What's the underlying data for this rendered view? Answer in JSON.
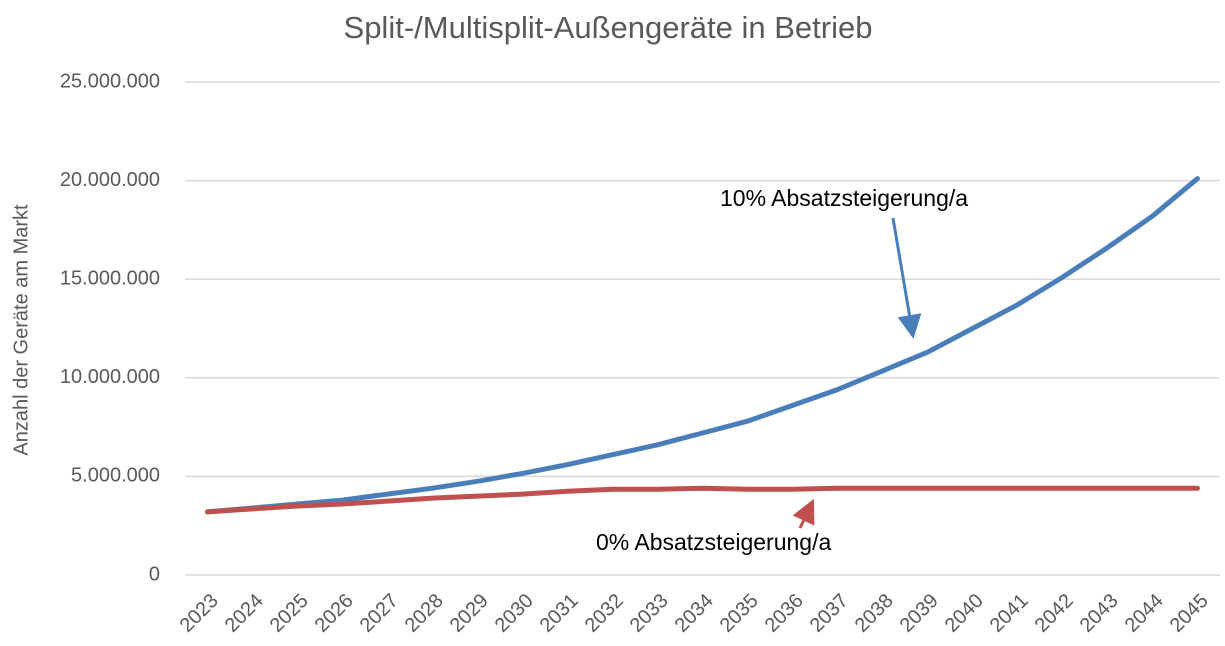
{
  "chart_data": {
    "type": "line",
    "title": "Split-/Multisplit-Außengeräte in Betrieb",
    "y_label": "Anzahl der Geräte am Markt",
    "categories": [
      "2023",
      "2024",
      "2025",
      "2026",
      "2027",
      "2028",
      "2029",
      "2030",
      "2031",
      "2032",
      "2033",
      "2034",
      "2035",
      "2036",
      "2037",
      "2038",
      "2039",
      "2040",
      "2041",
      "2042",
      "2043",
      "2044",
      "2045"
    ],
    "series": [
      {
        "name": "10% Absatzsteigerung/a",
        "color": "#4a7ebb",
        "values": [
          3200000,
          3400000,
          3600000,
          3800000,
          4100000,
          4400000,
          4750000,
          5150000,
          5600000,
          6100000,
          6600000,
          7200000,
          7800000,
          8600000,
          9400000,
          10350000,
          11300000,
          12500000,
          13700000,
          15100000,
          16600000,
          18200000,
          20100000
        ]
      },
      {
        "name": "0% Absatzsteigerung/a",
        "color": "#c0504d",
        "values": [
          3200000,
          3350000,
          3500000,
          3600000,
          3750000,
          3900000,
          4000000,
          4100000,
          4250000,
          4350000,
          4350000,
          4400000,
          4350000,
          4350000,
          4400000,
          4400000,
          4400000,
          4400000,
          4400000,
          4400000,
          4400000,
          4400000,
          4400000
        ]
      }
    ],
    "ylim": [
      0,
      25000000
    ],
    "yticks": [
      0,
      {
        "value": 5000000,
        "label": "5.000.000"
      },
      {
        "value": 10000000,
        "label": "10.000.000"
      },
      {
        "value": 15000000,
        "label": "15.000.000"
      },
      {
        "value": 20000000,
        "label": "20.000.000"
      },
      {
        "value": 25000000,
        "label": "25.000.000"
      }
    ],
    "grid": true
  }
}
